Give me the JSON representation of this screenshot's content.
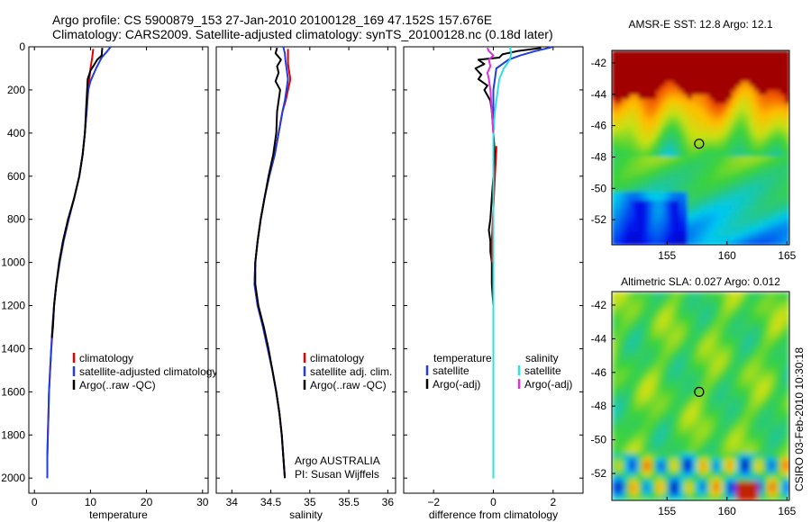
{
  "title_line1": "Argo profile: CS 5900879_153 27-Jan-2010 20100128_169 47.152S 157.676E",
  "title_line2": "Climatology: CARS2009. Satellite-adjusted climatology: synTS_20100128.nc (0.18d later)",
  "credit_text": "CSIRO 03-Feb-2010 10:30:18",
  "colors": {
    "climatology": "#e00000",
    "satellite": "#1f3de0",
    "argo": "#000000",
    "satellite_sal": "#30e0e0",
    "argo_sal": "#e030e0"
  },
  "chart_data": [
    {
      "type": "line",
      "xlabel": "temperature",
      "xlim": [
        -1,
        31
      ],
      "ylim": [
        2070,
        0
      ],
      "xticks": [
        0,
        10,
        20,
        30
      ],
      "yticks": [
        0,
        200,
        400,
        600,
        800,
        1000,
        1200,
        1400,
        1600,
        1800,
        2000
      ],
      "series": [
        {
          "name": "climatology",
          "color": "#e00000",
          "points": [
            [
              10.5,
              10
            ],
            [
              10.3,
              50
            ],
            [
              10.0,
              100
            ],
            [
              9.6,
              200
            ],
            [
              9.3,
              300
            ],
            [
              9.0,
              400
            ],
            [
              8.6,
              500
            ],
            [
              8.0,
              600
            ],
            [
              7.1,
              700
            ],
            [
              6.1,
              800
            ],
            [
              5.2,
              900
            ],
            [
              4.5,
              1000
            ],
            [
              3.9,
              1100
            ],
            [
              3.5,
              1200
            ],
            [
              3.3,
              1300
            ],
            [
              3.0,
              1400
            ],
            [
              2.8,
              1500
            ],
            [
              2.6,
              1600
            ],
            [
              2.5,
              1700
            ],
            [
              2.4,
              1800
            ],
            [
              2.3,
              1900
            ],
            [
              2.3,
              2000
            ]
          ]
        },
        {
          "name": "satellite-adjusted climatology",
          "color": "#1f3de0",
          "points": [
            [
              13.6,
              0
            ],
            [
              13.0,
              20
            ],
            [
              12.0,
              50
            ],
            [
              11.0,
              100
            ],
            [
              10.0,
              160
            ],
            [
              9.6,
              200
            ],
            [
              9.3,
              300
            ],
            [
              9.0,
              400
            ],
            [
              8.6,
              500
            ],
            [
              8.0,
              600
            ],
            [
              7.1,
              700
            ],
            [
              6.1,
              800
            ],
            [
              5.2,
              900
            ],
            [
              4.5,
              1000
            ],
            [
              3.9,
              1100
            ],
            [
              3.5,
              1200
            ],
            [
              3.2,
              1300
            ],
            [
              3.0,
              1400
            ],
            [
              2.8,
              1500
            ],
            [
              2.6,
              1600
            ],
            [
              2.5,
              1700
            ],
            [
              2.4,
              1800
            ],
            [
              2.3,
              1900
            ],
            [
              2.3,
              2000
            ]
          ]
        },
        {
          "name": "Argo(..raw -QC)",
          "color": "#000000",
          "points": [
            [
              12.1,
              5
            ],
            [
              12.0,
              40
            ],
            [
              11.2,
              60
            ],
            [
              10.5,
              90
            ],
            [
              10.0,
              110
            ],
            [
              9.5,
              150
            ],
            [
              9.4,
              200
            ],
            [
              9.2,
              300
            ],
            [
              9.0,
              400
            ],
            [
              8.6,
              500
            ],
            [
              8.0,
              600
            ],
            [
              7.1,
              700
            ],
            [
              6.0,
              800
            ],
            [
              5.1,
              900
            ],
            [
              4.4,
              1000
            ],
            [
              3.9,
              1100
            ],
            [
              3.5,
              1200
            ],
            [
              3.3,
              1300
            ],
            [
              3.1,
              1350
            ]
          ]
        }
      ],
      "legend": [
        {
          "label": "climatology",
          "color": "#e00000"
        },
        {
          "label": "satellite-adjusted climatology",
          "color": "#1f3de0"
        },
        {
          "label": "Argo(..raw -QC)",
          "color": "#000000"
        }
      ]
    },
    {
      "type": "line",
      "xlabel": "salinity",
      "xlim": [
        33.8,
        36.1
      ],
      "ylim": [
        2070,
        0
      ],
      "xticks": [
        34,
        34.5,
        35,
        35.5,
        36
      ],
      "xticklabels": [
        "34",
        "34.5",
        "35",
        "35.5",
        "36"
      ],
      "yticks": [
        0,
        200,
        400,
        600,
        800,
        1000,
        1200,
        1400,
        1600,
        1800,
        2000
      ],
      "series": [
        {
          "name": "climatology",
          "color": "#e00000",
          "points": [
            [
              34.72,
              10
            ],
            [
              34.72,
              80
            ],
            [
              34.75,
              150
            ],
            [
              34.72,
              200
            ],
            [
              34.69,
              250
            ],
            [
              34.65,
              300
            ],
            [
              34.6,
              400
            ],
            [
              34.55,
              500
            ],
            [
              34.48,
              600
            ],
            [
              34.42,
              700
            ],
            [
              34.37,
              800
            ],
            [
              34.33,
              900
            ],
            [
              34.3,
              1000
            ],
            [
              34.29,
              1100
            ],
            [
              34.33,
              1200
            ],
            [
              34.4,
              1300
            ],
            [
              34.46,
              1400
            ],
            [
              34.52,
              1500
            ],
            [
              34.57,
              1600
            ],
            [
              34.61,
              1700
            ],
            [
              34.64,
              1800
            ],
            [
              34.66,
              1900
            ],
            [
              34.68,
              2000
            ]
          ]
        },
        {
          "name": "satellite adj. clim.",
          "color": "#1f3de0",
          "points": [
            [
              34.66,
              0
            ],
            [
              34.68,
              30
            ],
            [
              34.69,
              70
            ],
            [
              34.72,
              150
            ],
            [
              34.7,
              200
            ],
            [
              34.68,
              250
            ],
            [
              34.65,
              300
            ],
            [
              34.6,
              400
            ],
            [
              34.55,
              500
            ],
            [
              34.48,
              600
            ],
            [
              34.42,
              700
            ],
            [
              34.37,
              800
            ],
            [
              34.33,
              900
            ],
            [
              34.3,
              1000
            ],
            [
              34.29,
              1100
            ],
            [
              34.33,
              1200
            ],
            [
              34.4,
              1300
            ],
            [
              34.46,
              1400
            ],
            [
              34.52,
              1500
            ],
            [
              34.57,
              1600
            ],
            [
              34.61,
              1700
            ],
            [
              34.64,
              1800
            ],
            [
              34.66,
              1900
            ],
            [
              34.68,
              2000
            ]
          ]
        },
        {
          "name": "Argo(..raw -QC)",
          "color": "#000000",
          "points": [
            [
              34.58,
              5
            ],
            [
              34.56,
              30
            ],
            [
              34.63,
              60
            ],
            [
              34.58,
              90
            ],
            [
              34.6,
              120
            ],
            [
              34.56,
              160
            ],
            [
              34.62,
              200
            ],
            [
              34.6,
              250
            ],
            [
              34.58,
              300
            ],
            [
              34.57,
              400
            ],
            [
              34.53,
              500
            ],
            [
              34.47,
              600
            ],
            [
              34.42,
              700
            ],
            [
              34.37,
              800
            ],
            [
              34.33,
              900
            ],
            [
              34.3,
              1000
            ],
            [
              34.3,
              1100
            ],
            [
              34.34,
              1200
            ],
            [
              34.41,
              1300
            ],
            [
              34.47,
              1400
            ],
            [
              34.52,
              1500
            ],
            [
              34.57,
              1600
            ],
            [
              34.61,
              1700
            ],
            [
              34.64,
              1800
            ],
            [
              34.66,
              1900
            ],
            [
              34.68,
              2000
            ]
          ]
        }
      ],
      "legend": [
        {
          "label": "climatology",
          "color": "#e00000"
        },
        {
          "label": "satellite adj. clim.",
          "color": "#1f3de0"
        },
        {
          "label": "Argo(..raw -QC)",
          "color": "#000000"
        }
      ],
      "annotation_line1": "Argo AUSTRALIA",
      "annotation_line2": "PI: Susan Wijffels"
    },
    {
      "type": "line",
      "xlabel": "difference from climatology",
      "xlim": [
        -3,
        3
      ],
      "ylim": [
        2070,
        0
      ],
      "xticks": [
        -2,
        0,
        2
      ],
      "xticklabels": [
        "−2",
        "0",
        "2"
      ],
      "yticks": [
        0,
        200,
        400,
        600,
        800,
        1000,
        1200,
        1400,
        1600,
        1800,
        2000
      ],
      "series": [
        {
          "name": "temperature satellite",
          "color": "#1f3de0",
          "points": [
            [
              2.0,
              0
            ],
            [
              1.4,
              20
            ],
            [
              0.9,
              40
            ],
            [
              0.5,
              60
            ],
            [
              0.3,
              80
            ],
            [
              0.1,
              100
            ],
            [
              0.05,
              150
            ],
            [
              0,
              200
            ],
            [
              0,
              400
            ],
            [
              0,
              800
            ],
            [
              0,
              1200
            ],
            [
              0,
              1600
            ],
            [
              0,
              2000
            ]
          ]
        },
        {
          "name": "temperature Argo(-adj)",
          "color": "#000000",
          "points": [
            [
              1.6,
              5
            ],
            [
              0.8,
              20
            ],
            [
              0.3,
              35
            ],
            [
              0.2,
              50
            ],
            [
              -0.5,
              60
            ],
            [
              -0.3,
              80
            ],
            [
              -0.6,
              100
            ],
            [
              -0.4,
              130
            ],
            [
              -0.5,
              150
            ],
            [
              -0.2,
              180
            ],
            [
              -0.3,
              200
            ],
            [
              -0.1,
              250
            ],
            [
              -0.05,
              300
            ],
            [
              0.0,
              400
            ],
            [
              0.05,
              500
            ],
            [
              0.0,
              600
            ],
            [
              -0.05,
              700
            ],
            [
              -0.1,
              800
            ],
            [
              -0.15,
              850
            ],
            [
              -0.1,
              900
            ],
            [
              -0.1,
              950
            ],
            [
              -0.05,
              1000
            ],
            [
              -0.05,
              1100
            ],
            [
              0.0,
              1200
            ],
            [
              0.0,
              1350
            ]
          ]
        },
        {
          "name": "temperature climatology",
          "color": "#e00000",
          "points": [
            [
              0.1,
              460
            ],
            [
              0.1,
              480
            ],
            [
              0.05,
              600
            ],
            [
              -0.05,
              900
            ],
            [
              -0.05,
              1000
            ]
          ]
        },
        {
          "name": "salinity satellite",
          "color": "#30e0e0",
          "points": [
            [
              0.55,
              0
            ],
            [
              0.6,
              30
            ],
            [
              0.55,
              60
            ],
            [
              0.35,
              100
            ],
            [
              0.2,
              150
            ],
            [
              0.1,
              250
            ],
            [
              0.05,
              300
            ],
            [
              0,
              400
            ],
            [
              0,
              800
            ],
            [
              0,
              1200
            ],
            [
              0,
              1600
            ],
            [
              0,
              2000
            ]
          ]
        },
        {
          "name": "salinity Argo(-adj)",
          "color": "#e030e0",
          "points": [
            [
              -0.2,
              5
            ],
            [
              -0.15,
              20
            ],
            [
              0.0,
              40
            ],
            [
              -0.15,
              60
            ],
            [
              -0.1,
              90
            ],
            [
              -0.2,
              120
            ],
            [
              -0.15,
              150
            ],
            [
              -0.1,
              200
            ],
            [
              -0.05,
              300
            ],
            [
              0,
              400
            ]
          ]
        }
      ],
      "legend_left_header": "temperature",
      "legend_right_header": "salinity",
      "legend_left": [
        {
          "label": "satellite",
          "color": "#1f3de0"
        },
        {
          "label": "Argo(-adj)",
          "color": "#000000"
        }
      ],
      "legend_right": [
        {
          "label": "satellite",
          "color": "#30e0e0"
        },
        {
          "label": "Argo(-adj)",
          "color": "#e030e0"
        }
      ]
    },
    {
      "type": "heatmap",
      "title": "AMSR-E SST: 12.8 Argo: 12.1",
      "xlim": [
        150.4,
        165.2
      ],
      "ylim": [
        -53.6,
        -41.2
      ],
      "xticks": [
        155,
        160,
        165
      ],
      "yticks": [
        -42,
        -44,
        -46,
        -48,
        -50,
        -52
      ],
      "marker": [
        157.676,
        -47.152
      ]
    },
    {
      "type": "heatmap",
      "title": "Altimetric SLA: 0.027 Argo: 0.012",
      "xlim": [
        150.4,
        165.2
      ],
      "ylim": [
        -53.6,
        -41.2
      ],
      "xticks": [
        155,
        160,
        165
      ],
      "yticks": [
        -42,
        -44,
        -46,
        -48,
        -50,
        -52
      ],
      "marker": [
        157.676,
        -47.152
      ]
    }
  ]
}
